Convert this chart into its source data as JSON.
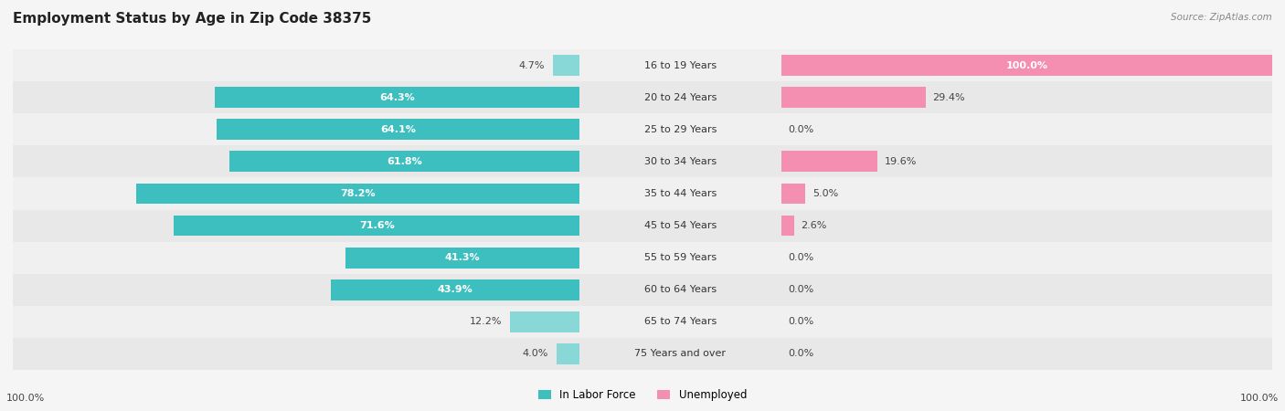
{
  "title": "Employment Status by Age in Zip Code 38375",
  "source": "Source: ZipAtlas.com",
  "categories": [
    "16 to 19 Years",
    "20 to 24 Years",
    "25 to 29 Years",
    "30 to 34 Years",
    "35 to 44 Years",
    "45 to 54 Years",
    "55 to 59 Years",
    "60 to 64 Years",
    "65 to 74 Years",
    "75 Years and over"
  ],
  "labor_force": [
    4.7,
    64.3,
    64.1,
    61.8,
    78.2,
    71.6,
    41.3,
    43.9,
    12.2,
    4.0
  ],
  "unemployed": [
    100.0,
    29.4,
    0.0,
    19.6,
    5.0,
    2.6,
    0.0,
    0.0,
    0.0,
    0.0
  ],
  "labor_color_dark": "#3dbfbf",
  "labor_color_light": "#88d8d8",
  "unemployed_color": "#f48fb1",
  "row_colors": [
    "#f0f0f0",
    "#e8e8e8"
  ],
  "title_fontsize": 11,
  "label_fontsize": 8,
  "bar_label_fontsize": 8,
  "left_label": "100.0%",
  "right_label": "100.0%",
  "fig_bg": "#f5f5f5"
}
